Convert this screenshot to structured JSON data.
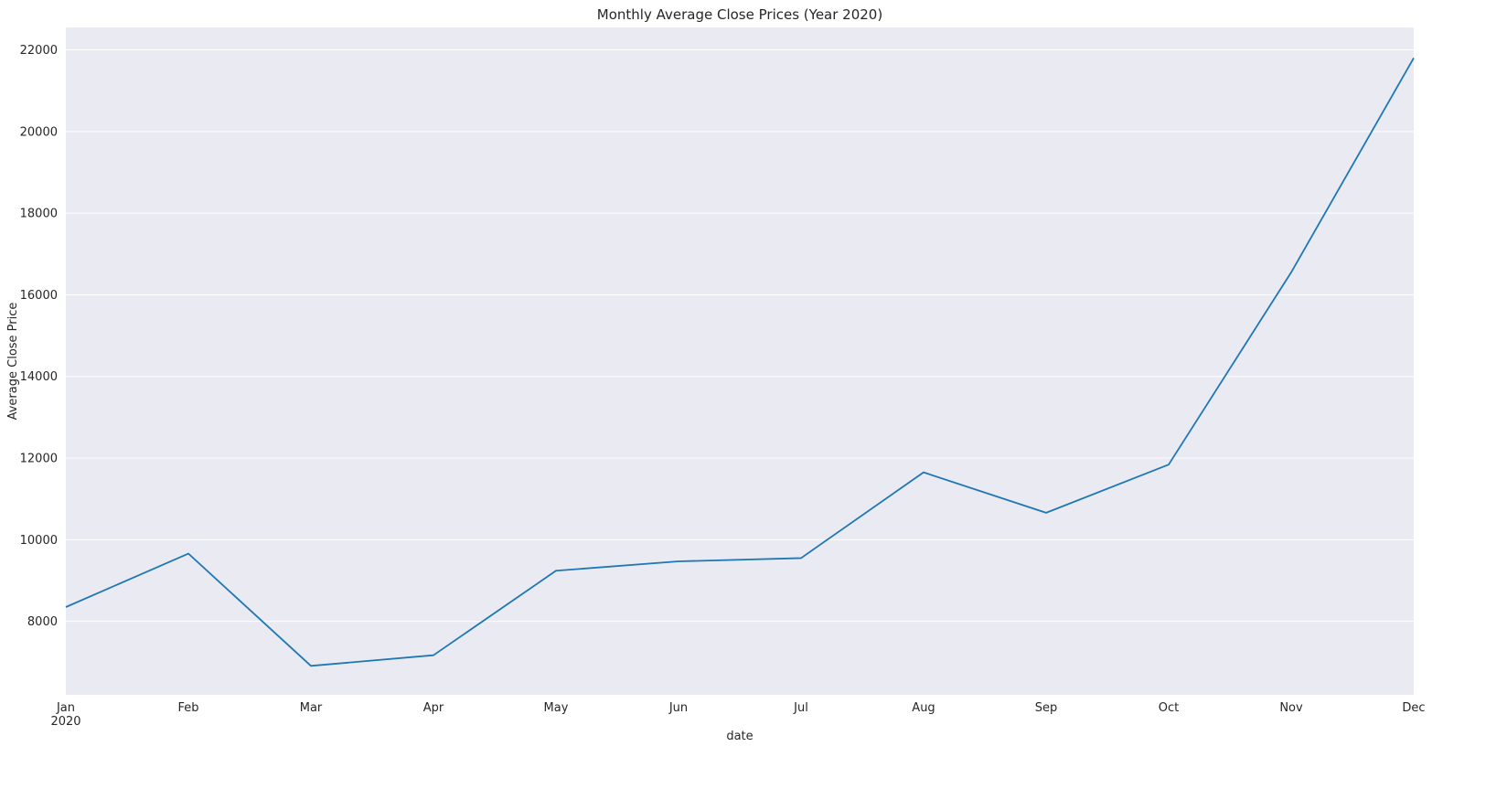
{
  "chart_data": {
    "type": "line",
    "title": "Monthly Average Close Prices (Year 2020)",
    "xlabel": "date",
    "ylabel": "Average Close Price",
    "categories": [
      "Jan",
      "Feb",
      "Mar",
      "Apr",
      "May",
      "Jun",
      "Jul",
      "Aug",
      "Sep",
      "Oct",
      "Nov",
      "Dec"
    ],
    "x_year_label": "2020",
    "series": [
      {
        "values": [
          8350,
          9660,
          6910,
          7170,
          9240,
          9470,
          9550,
          11650,
          10660,
          11840,
          16550,
          21800
        ]
      }
    ],
    "ylim": [
      6200,
      22550
    ],
    "yticks": [
      8000,
      10000,
      12000,
      14000,
      16000,
      18000,
      20000,
      22000
    ],
    "ytick_labels": [
      "8000",
      "10000",
      "12000",
      "14000",
      "16000",
      "18000",
      "20000",
      "22000"
    ],
    "grid": true,
    "style": {
      "background": "#eaeaf2",
      "grid_color": "#ffffff",
      "line_color": "#1f77b4"
    }
  }
}
